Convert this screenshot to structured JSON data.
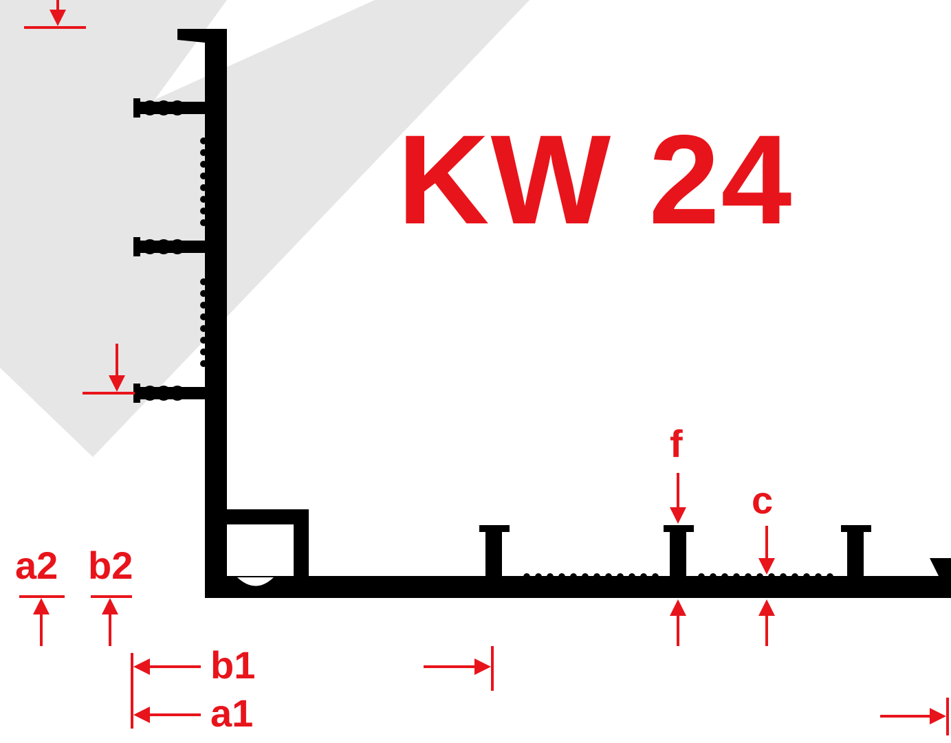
{
  "title": "KW 24",
  "colors": {
    "accent": "#e8141b",
    "profile": "#000000",
    "watermark": "#e6e6e6"
  },
  "labels": {
    "a2": "a2",
    "b2": "b2",
    "b1": "b1",
    "a1": "a1",
    "f": "f",
    "c": "c"
  }
}
